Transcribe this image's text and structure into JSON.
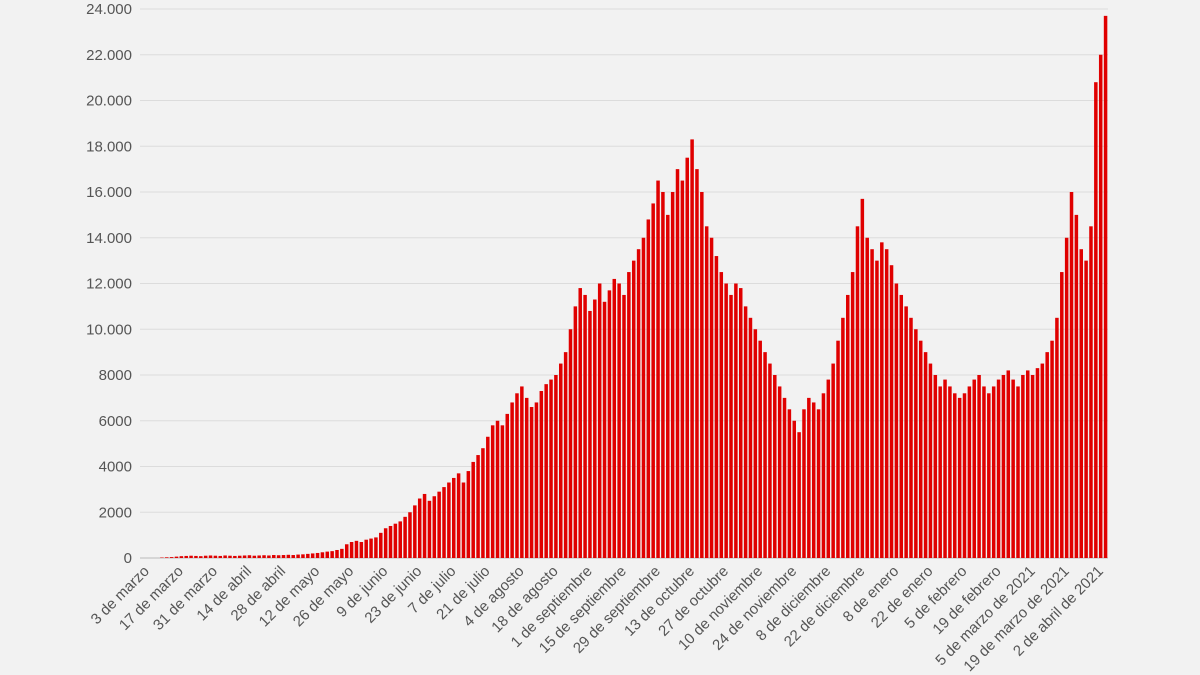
{
  "chart_data": {
    "type": "bar",
    "title": "",
    "xlabel": "",
    "ylabel": "",
    "ylim": [
      0,
      24000
    ],
    "grid": true,
    "bar_color": "#e00000",
    "grid_color": "#dcdcdc",
    "axis_text_color": "#555555",
    "y_ticks": [
      {
        "value": 0,
        "label": "0"
      },
      {
        "value": 2000,
        "label": "2000"
      },
      {
        "value": 4000,
        "label": "4000"
      },
      {
        "value": 6000,
        "label": "6000"
      },
      {
        "value": 8000,
        "label": "8000"
      },
      {
        "value": 10000,
        "label": "10.000"
      },
      {
        "value": 12000,
        "label": "12.000"
      },
      {
        "value": 14000,
        "label": "14.000"
      },
      {
        "value": 16000,
        "label": "16.000"
      },
      {
        "value": 18000,
        "label": "18.000"
      },
      {
        "value": 20000,
        "label": "20.000"
      },
      {
        "value": 22000,
        "label": "22.000"
      },
      {
        "value": 24000,
        "label": "24.000"
      }
    ],
    "x_tick_labels": [
      "3 de marzo",
      "17 de marzo",
      "31 de marzo",
      "14 de abril",
      "28 de abril",
      "12 de mayo",
      "26 de mayo",
      "9 de junio",
      "23 de junio",
      "7 de julio",
      "21 de julio",
      "4 de agosto",
      "18 de agosto",
      "1 de septiembre",
      "15 de septiembre",
      "29 de septiembre",
      "13 de octubre",
      "27 de octubre",
      "10 de noviembre",
      "24 de noviembre",
      "8 de diciembre",
      "22 de diciembre",
      "8 de enero",
      "22 de enero",
      "5 de febrero",
      "19 de febrero",
      "5 de marzo de 2021",
      "19 de marzo de 2021",
      "2 de abril de 2021"
    ],
    "series": [
      {
        "values": [
          0,
          0,
          0,
          0,
          20,
          30,
          40,
          60,
          80,
          90,
          100,
          90,
          80,
          100,
          110,
          100,
          90,
          110,
          100,
          90,
          100,
          110,
          120,
          100,
          110,
          120,
          110,
          130,
          120,
          130,
          140,
          130,
          150,
          160,
          180,
          200,
          220,
          250,
          280,
          300,
          350,
          400,
          600,
          700,
          750,
          700,
          800,
          850,
          900,
          1100,
          1300,
          1400,
          1500,
          1600,
          1800,
          2000,
          2300,
          2600,
          2800,
          2500,
          2700,
          2900,
          3100,
          3300,
          3500,
          3700,
          3300,
          3800,
          4200,
          4500,
          4800,
          5300,
          5800,
          6000,
          5800,
          6300,
          6800,
          7200,
          7500,
          7000,
          6600,
          6800,
          7300,
          7600,
          7800,
          8000,
          8500,
          9000,
          10000,
          11000,
          11800,
          11500,
          10800,
          11300,
          12000,
          11200,
          11700,
          12200,
          12000,
          11500,
          12500,
          13000,
          13500,
          14000,
          14800,
          15500,
          16500,
          16000,
          15000,
          16000,
          17000,
          16500,
          17500,
          18300,
          17000,
          16000,
          14500,
          14000,
          13200,
          12500,
          12000,
          11500,
          12000,
          11800,
          11000,
          10500,
          10000,
          9500,
          9000,
          8500,
          8000,
          7500,
          7000,
          6500,
          6000,
          5500,
          6500,
          7000,
          6800,
          6500,
          7200,
          7800,
          8500,
          9500,
          10500,
          11500,
          12500,
          14500,
          15700,
          14000,
          13500,
          13000,
          13800,
          13500,
          12800,
          12000,
          11500,
          11000,
          10500,
          10000,
          9500,
          9000,
          8500,
          8000,
          7500,
          7800,
          7500,
          7200,
          7000,
          7200,
          7500,
          7800,
          8000,
          7500,
          7200,
          7500,
          7800,
          8000,
          8200,
          7800,
          7500,
          8000,
          8200,
          8000,
          8300,
          8500,
          9000,
          9500,
          10500,
          12500,
          14000,
          16000,
          15000,
          13500,
          13000,
          14500,
          20800,
          22000,
          23700
        ]
      }
    ]
  }
}
